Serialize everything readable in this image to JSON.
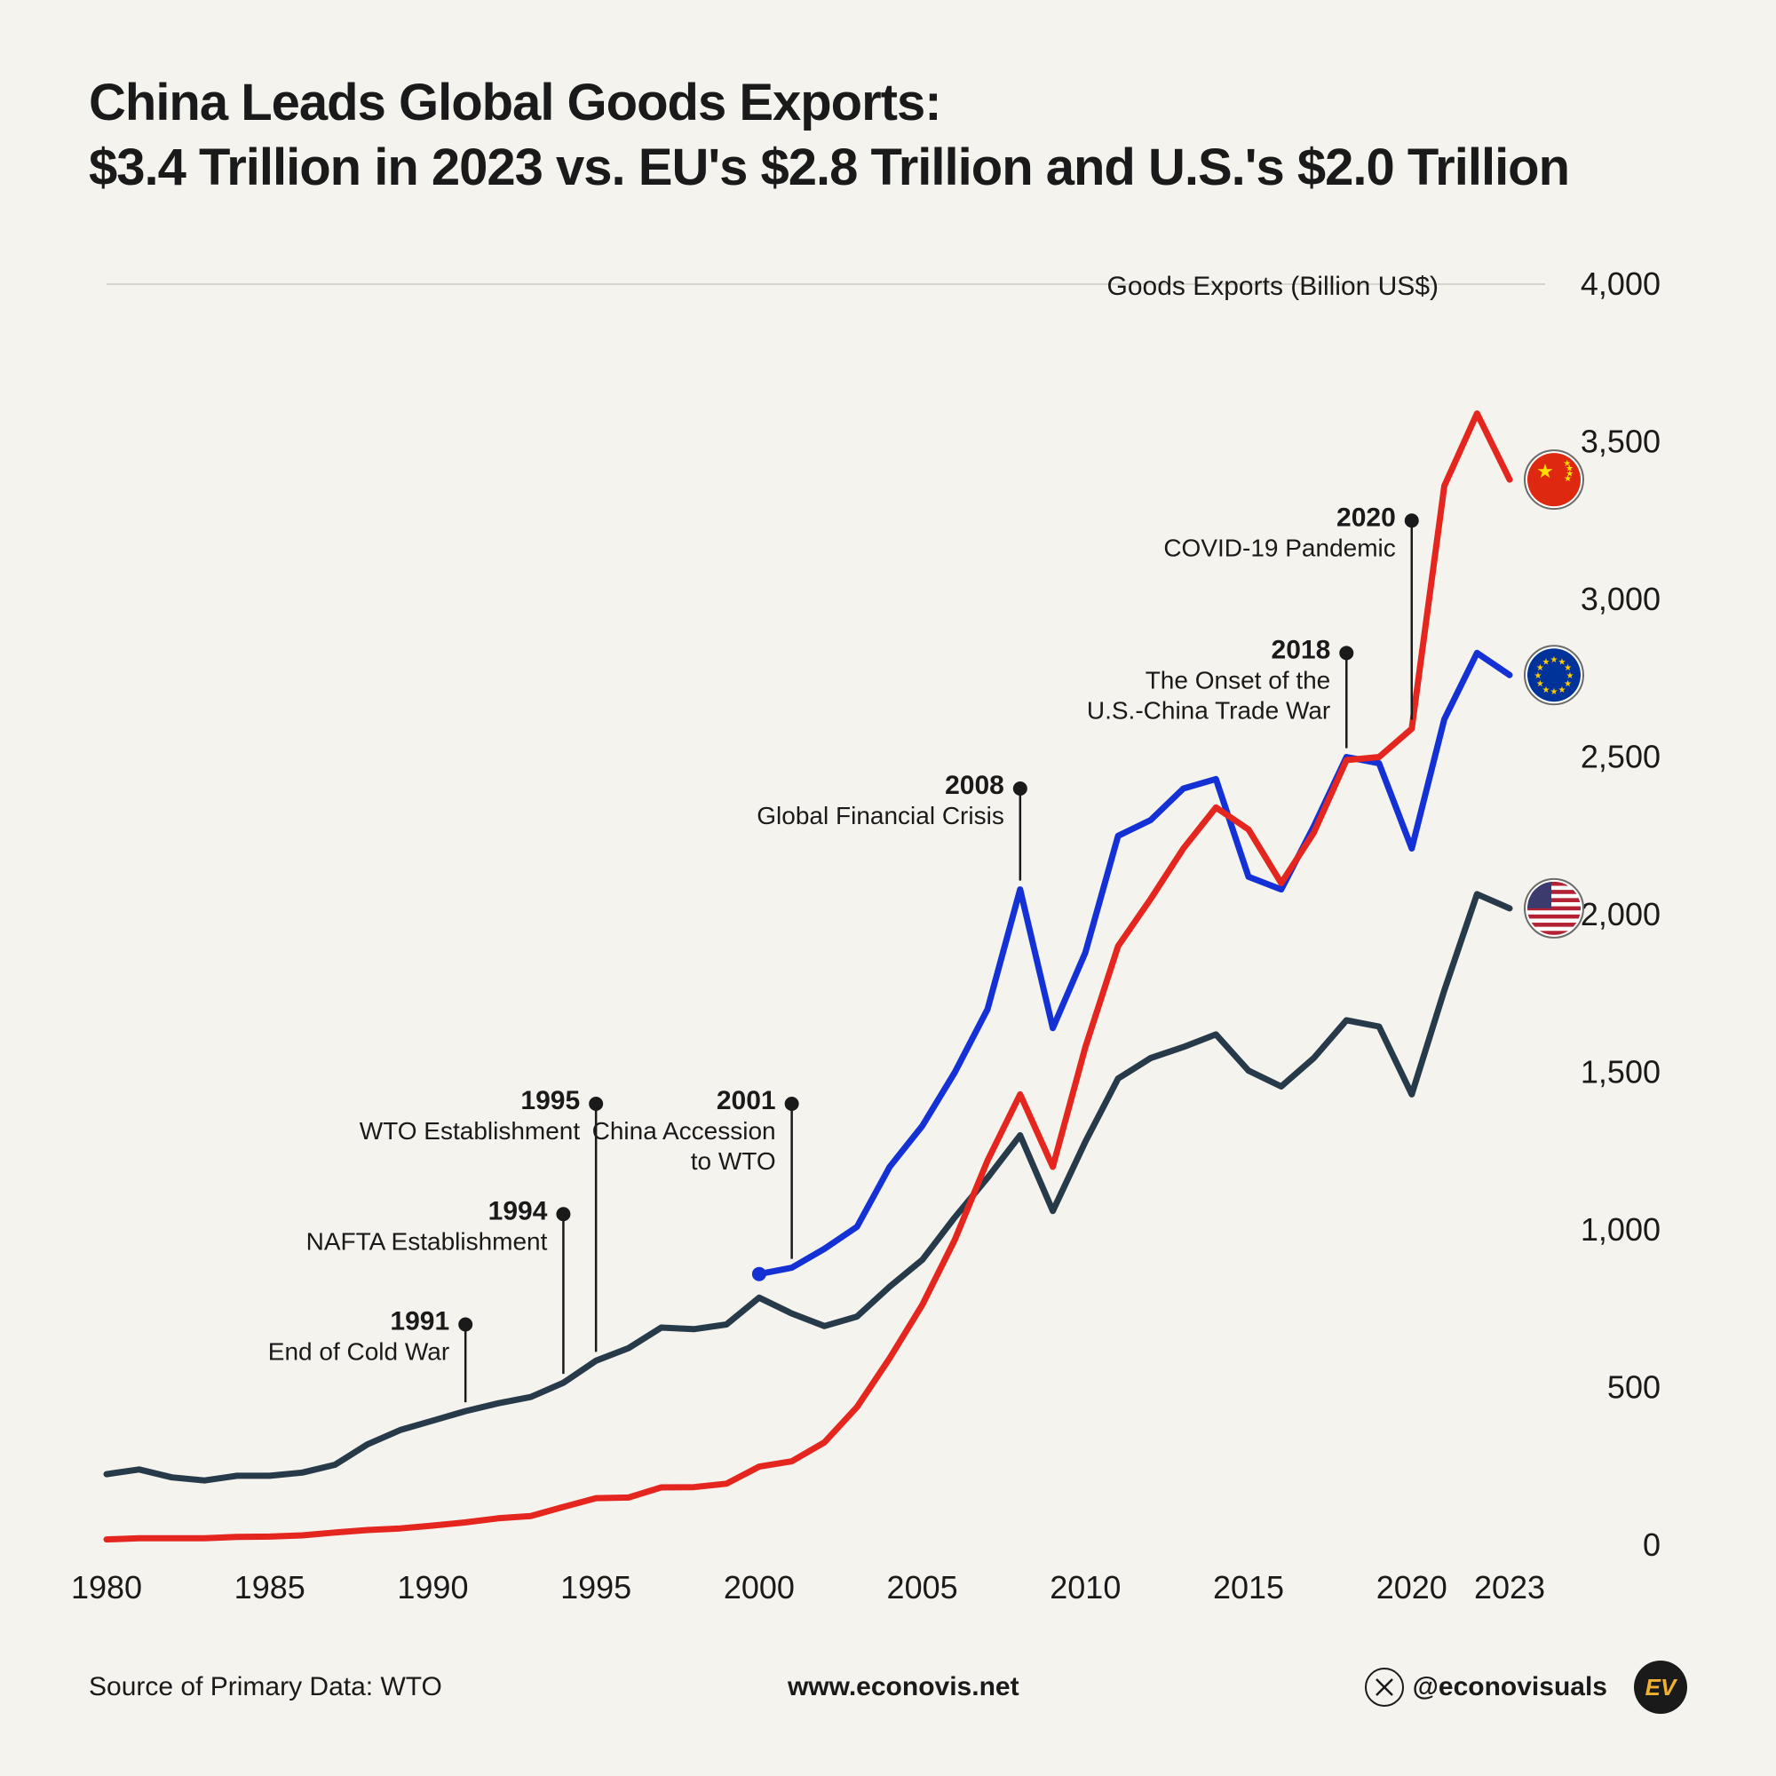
{
  "title_line1": "China Leads Global Goods Exports:",
  "title_line2": "$3.4 Trillion in 2023 vs. EU's $2.8 Trillion and U.S.'s $2.0 Trillion",
  "axis_label": "Goods Exports (Billion US$)",
  "source_text": "Source of Primary Data: WTO",
  "site_text": "www.econovis.net",
  "handle_text": "@econovisuals",
  "ev_badge": "EV",
  "chart": {
    "type": "line",
    "background_color": "#f5f3ee",
    "grid_color": "#d8d5cc",
    "x_start": 1980,
    "x_end": 2023,
    "x_ticks": [
      1980,
      1985,
      1990,
      1995,
      2000,
      2005,
      2010,
      2015,
      2020,
      2023
    ],
    "y_min": 0,
    "y_max": 4000,
    "y_ticks": [
      0,
      500,
      1000,
      1500,
      2000,
      2500,
      3000,
      3500,
      4000
    ],
    "y_tick_labels": [
      "0",
      "500",
      "1,000",
      "1,500",
      "2,000",
      "2,500",
      "3,000",
      "3,500",
      "4,000"
    ],
    "line_width": 7,
    "series": {
      "us": {
        "color": "#263a4a",
        "years": [
          1980,
          1981,
          1982,
          1983,
          1984,
          1985,
          1986,
          1987,
          1988,
          1989,
          1990,
          1991,
          1992,
          1993,
          1994,
          1995,
          1996,
          1997,
          1998,
          1999,
          2000,
          2001,
          2002,
          2003,
          2004,
          2005,
          2006,
          2007,
          2008,
          2009,
          2010,
          2011,
          2012,
          2013,
          2014,
          2015,
          2016,
          2017,
          2018,
          2019,
          2020,
          2021,
          2022,
          2023
        ],
        "values": [
          225,
          240,
          215,
          205,
          220,
          220,
          230,
          255,
          320,
          365,
          395,
          425,
          450,
          470,
          515,
          585,
          625,
          690,
          685,
          700,
          785,
          735,
          695,
          725,
          820,
          905,
          1040,
          1165,
          1300,
          1060,
          1280,
          1480,
          1545,
          1580,
          1620,
          1505,
          1455,
          1545,
          1665,
          1645,
          1430,
          1760,
          2065,
          2020
        ],
        "flag": "us"
      },
      "eu": {
        "color": "#1431d6",
        "years": [
          2000,
          2001,
          2002,
          2003,
          2004,
          2005,
          2006,
          2007,
          2008,
          2009,
          2010,
          2011,
          2012,
          2013,
          2014,
          2015,
          2016,
          2017,
          2018,
          2019,
          2020,
          2021,
          2022,
          2023
        ],
        "values": [
          860,
          880,
          940,
          1010,
          1200,
          1330,
          1500,
          1700,
          2080,
          1640,
          1880,
          2250,
          2300,
          2400,
          2430,
          2120,
          2080,
          2280,
          2500,
          2480,
          2210,
          2620,
          2830,
          2760
        ],
        "flag": "eu"
      },
      "china": {
        "color": "#e4261f",
        "years": [
          1980,
          1981,
          1982,
          1983,
          1984,
          1985,
          1986,
          1987,
          1988,
          1989,
          1990,
          1991,
          1992,
          1993,
          1994,
          1995,
          1996,
          1997,
          1998,
          1999,
          2000,
          2001,
          2002,
          2003,
          2004,
          2005,
          2006,
          2007,
          2008,
          2009,
          2010,
          2011,
          2012,
          2013,
          2014,
          2015,
          2016,
          2017,
          2018,
          2019,
          2020,
          2021,
          2022,
          2023
        ],
        "values": [
          18,
          22,
          22,
          22,
          26,
          27,
          31,
          40,
          48,
          53,
          62,
          72,
          85,
          92,
          121,
          149,
          151,
          183,
          184,
          195,
          249,
          266,
          326,
          438,
          593,
          762,
          969,
          1220,
          1430,
          1200,
          1580,
          1900,
          2050,
          2210,
          2340,
          2270,
          2100,
          2260,
          2490,
          2500,
          2590,
          3360,
          3590,
          3380
        ],
        "flag": "china"
      }
    },
    "annotations": [
      {
        "year": 1991,
        "y_end": 700,
        "title": "1991",
        "text": [
          "End of Cold War"
        ],
        "align": "right"
      },
      {
        "year": 1994,
        "y_end": 1050,
        "title": "1994",
        "text": [
          "NAFTA Establishment"
        ],
        "align": "right"
      },
      {
        "year": 1995,
        "y_end": 1400,
        "title": "1995",
        "text": [
          "WTO Establishment"
        ],
        "align": "right"
      },
      {
        "year": 2001,
        "y_end": 1400,
        "title": "2001",
        "text": [
          "China Accession",
          "to WTO"
        ],
        "align": "right"
      },
      {
        "year": 2008,
        "y_end": 2400,
        "title": "2008",
        "text": [
          "Global Financial Crisis"
        ],
        "align": "right"
      },
      {
        "year": 2018,
        "y_end": 2830,
        "title": "2018",
        "text": [
          "The Onset of the",
          "U.S.-China Trade War"
        ],
        "align": "right"
      },
      {
        "year": 2020,
        "y_end": 3250,
        "title": "2020",
        "text": [
          "COVID-19 Pandemic"
        ],
        "align": "right"
      }
    ],
    "flag_radius": 30,
    "annotation_dot_radius": 8
  }
}
